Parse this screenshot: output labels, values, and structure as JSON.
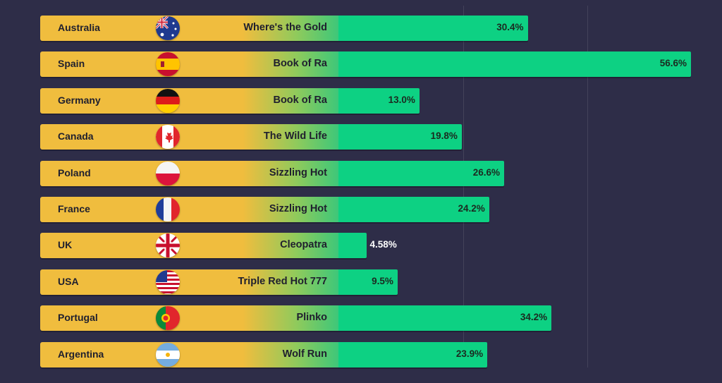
{
  "chart_data": {
    "type": "bar",
    "orientation": "horizontal",
    "title": "",
    "xlabel": "",
    "ylabel": "",
    "xlim": [
      0,
      60
    ],
    "grid": true,
    "categories": [
      "Australia",
      "Spain",
      "Germany",
      "Canada",
      "Poland",
      "France",
      "UK",
      "USA",
      "Portugal",
      "Argentina"
    ],
    "games": [
      "Where's the Gold",
      "Book of Ra",
      "Book of Ra",
      "The Wild Life",
      "Sizzling Hot",
      "Sizzling Hot",
      "Cleopatra",
      "Triple Red Hot 777",
      "Plinko",
      "Wolf Run"
    ],
    "values": [
      30.4,
      56.6,
      13.0,
      19.8,
      26.6,
      24.2,
      4.58,
      9.5,
      34.2,
      23.9
    ],
    "value_labels": [
      "30.4%",
      "56.6%",
      "13.0%",
      "19.8%",
      "26.6%",
      "24.2%",
      "4.58%",
      "9.5%",
      "34.2%",
      "23.9%"
    ],
    "flags": [
      "flag-australia-icon",
      "flag-spain-icon",
      "flag-germany-icon",
      "flag-canada-icon",
      "flag-poland-icon",
      "flag-france-icon",
      "flag-uk-icon",
      "flag-usa-icon",
      "flag-portugal-icon",
      "flag-argentina-icon"
    ],
    "colors": {
      "background": "#2e2d48",
      "label_bar": "#f0bd3e",
      "value_bar": "#0dd183"
    }
  }
}
